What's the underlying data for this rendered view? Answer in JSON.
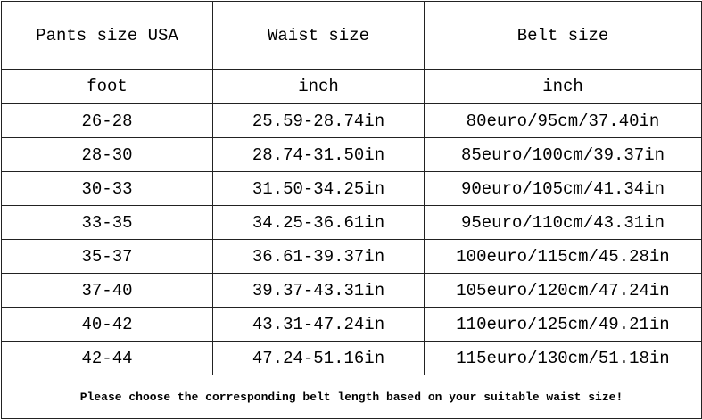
{
  "headers": [
    "Pants size USA",
    "Waist size",
    "Belt size"
  ],
  "units": [
    "foot",
    "inch",
    "inch"
  ],
  "rows": [
    [
      "26-28",
      "25.59-28.74in",
      "80euro/95cm/37.40in"
    ],
    [
      "28-30",
      "28.74-31.50in",
      "85euro/100cm/39.37in"
    ],
    [
      "30-33",
      "31.50-34.25in",
      "90euro/105cm/41.34in"
    ],
    [
      "33-35",
      "34.25-36.61in",
      "95euro/110cm/43.31in"
    ],
    [
      "35-37",
      "36.61-39.37in",
      "100euro/115cm/45.28in"
    ],
    [
      "37-40",
      "39.37-43.31in",
      "105euro/120cm/47.24in"
    ],
    [
      "40-42",
      "43.31-47.24in",
      "110euro/125cm/49.21in"
    ],
    [
      "42-44",
      "47.24-51.16in",
      "115euro/130cm/51.18in"
    ]
  ],
  "note": "Please choose the corresponding belt length based on your suitable waist size!"
}
